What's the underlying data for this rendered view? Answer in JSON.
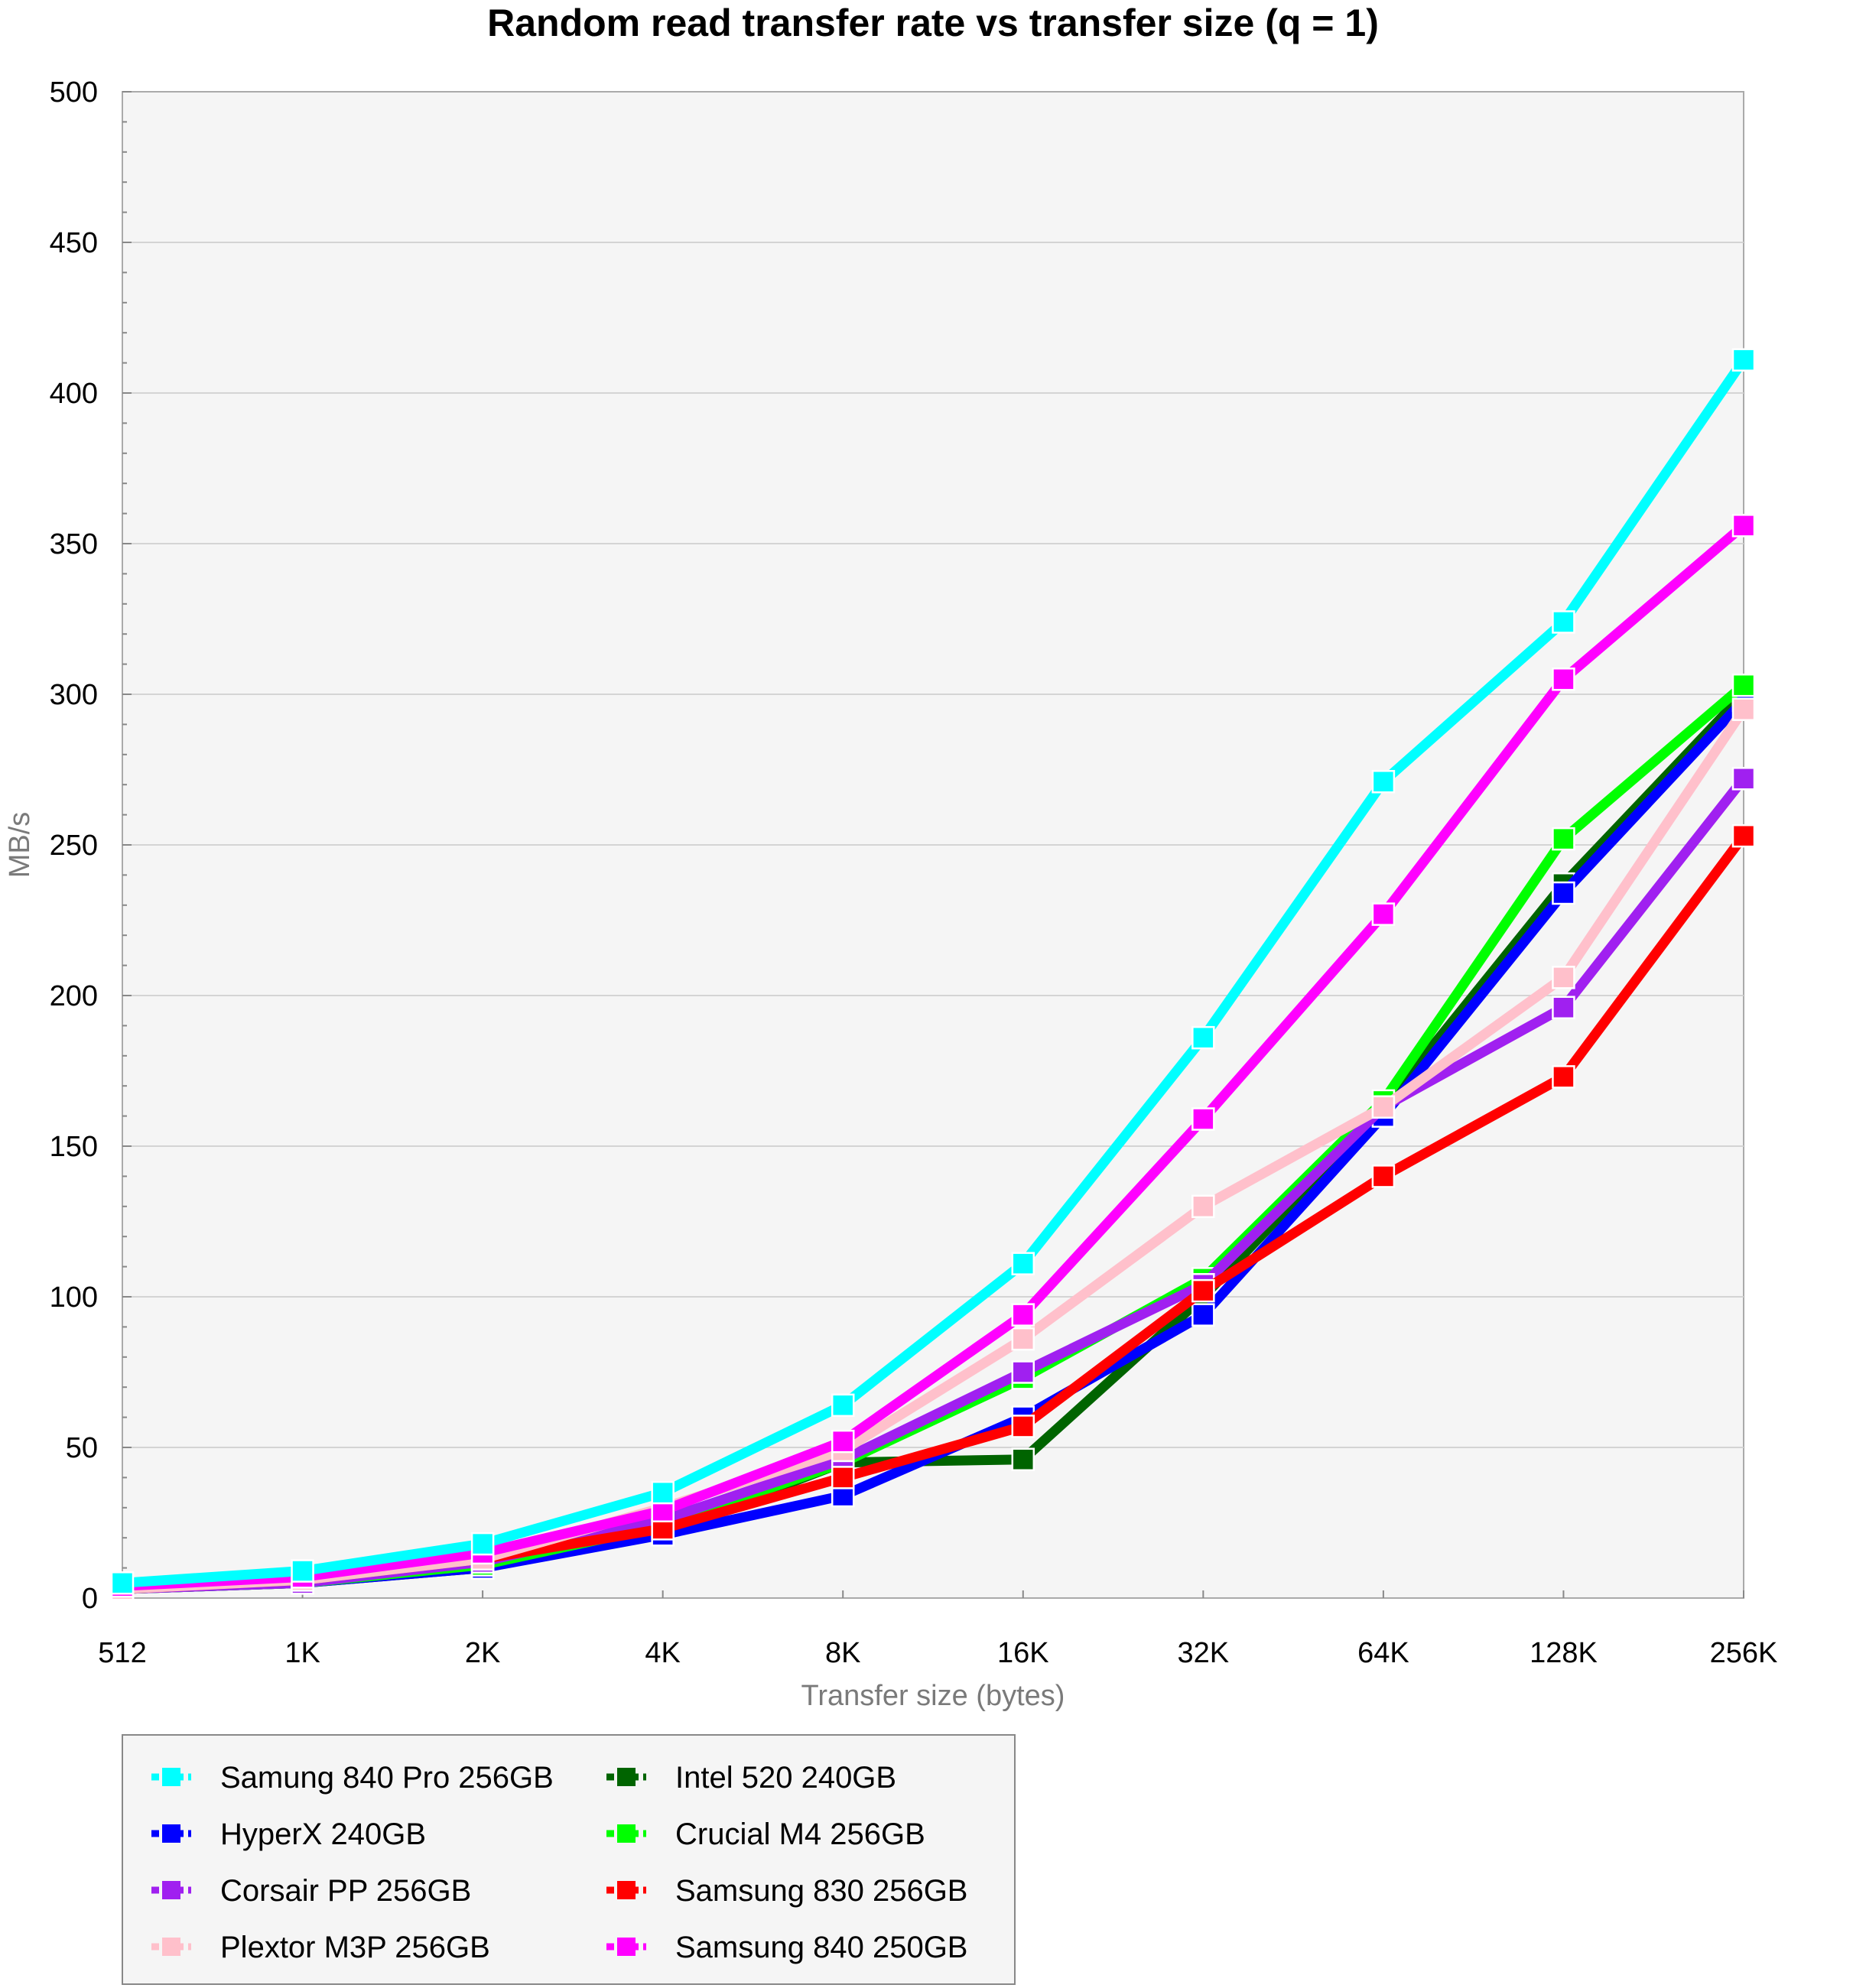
{
  "chart_data": {
    "type": "line",
    "title": "Random read transfer rate vs transfer size (q = 1)",
    "xlabel": "Transfer size (bytes)",
    "ylabel": "MB/s",
    "ylim": [
      0,
      500
    ],
    "yticks": [
      0,
      50,
      100,
      150,
      200,
      250,
      300,
      350,
      400,
      450,
      500
    ],
    "categories": [
      "512",
      "1K",
      "2K",
      "4K",
      "8K",
      "16K",
      "32K",
      "64K",
      "128K",
      "256K"
    ],
    "grid": true,
    "legend_position": "bottom-left",
    "series": [
      {
        "name": "Intel 520 240GB",
        "color": "#006400",
        "values": [
          3,
          5,
          10,
          22,
          45,
          46,
          100,
          163,
          237,
          300
        ]
      },
      {
        "name": "HyperX 240GB",
        "color": "#0000ff",
        "values": [
          3,
          5,
          10,
          21,
          34,
          60,
          94,
          160,
          234,
          298
        ]
      },
      {
        "name": "Crucial M4 256GB",
        "color": "#00ff00",
        "values": [
          3,
          5,
          11,
          24,
          45,
          73,
          106,
          165,
          252,
          303
        ]
      },
      {
        "name": "Corsair PP 256GB",
        "color": "#a020f0",
        "values": [
          3,
          5,
          12,
          26,
          46,
          75,
          104,
          163,
          196,
          272
        ]
      },
      {
        "name": "Samsung 830 256GB",
        "color": "#ff0000",
        "values": [
          3,
          6,
          13,
          23,
          40,
          57,
          102,
          140,
          173,
          253
        ]
      },
      {
        "name": "Plextor M3P 256GB",
        "color": "#ffc0cb",
        "values": [
          3,
          6,
          13,
          30,
          49,
          86,
          130,
          163,
          206,
          295
        ]
      },
      {
        "name": "Samsung 840 250GB",
        "color": "#ff00ff",
        "values": [
          4,
          7,
          15,
          29,
          52,
          94,
          159,
          227,
          305,
          356
        ]
      },
      {
        "name": "Samung 840 Pro 256GB",
        "color": "#00ffff",
        "values": [
          5,
          9,
          18,
          35,
          64,
          111,
          186,
          271,
          324,
          411
        ]
      }
    ],
    "legend_order": [
      "Samung 840 Pro 256GB",
      "Intel 520 240GB",
      "HyperX 240GB",
      "Crucial M4 256GB",
      "Corsair PP 256GB",
      "Samsung 830 256GB",
      "Plextor M3P 256GB",
      "Samsung 840 250GB"
    ]
  }
}
